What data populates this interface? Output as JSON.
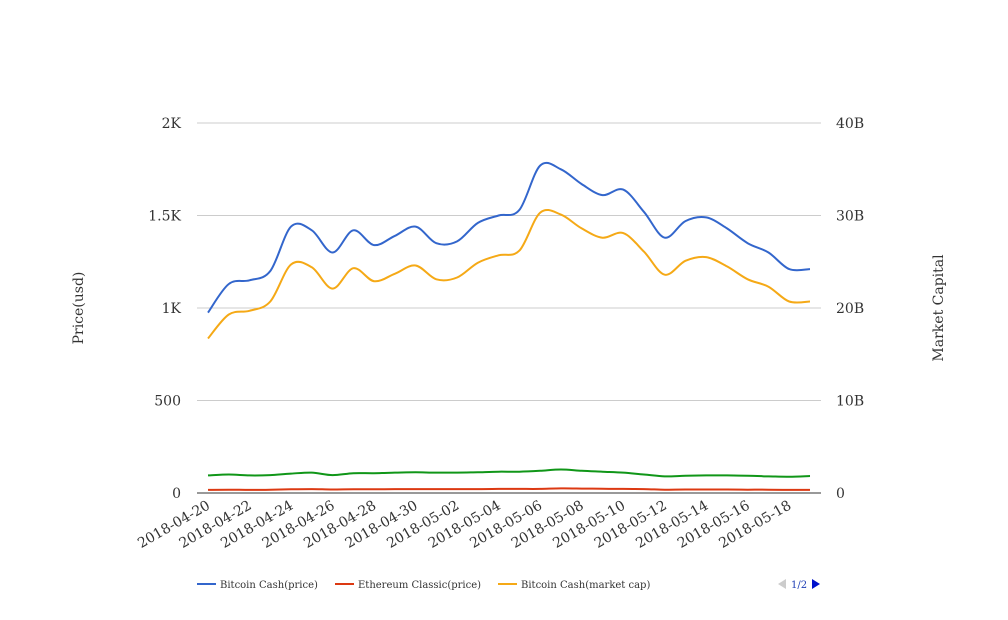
{
  "chart_data": {
    "type": "line",
    "ylabel": "Price(usd)",
    "y2label": "Market Capital",
    "ylim": [
      0,
      2000
    ],
    "y2lim": [
      0,
      40000000000
    ],
    "y_ticks": [
      "0",
      "500",
      "1K",
      "1.5K",
      "2K"
    ],
    "y2_ticks": [
      "0",
      "10B",
      "20B",
      "30B",
      "40B"
    ],
    "x_ticks": [
      "2018-04-20",
      "2018-04-22",
      "2018-04-24",
      "2018-04-26",
      "2018-04-28",
      "2018-04-30",
      "2018-05-02",
      "2018-05-04",
      "2018-05-06",
      "2018-05-08",
      "2018-05-10",
      "2018-05-12",
      "2018-05-14",
      "2018-05-16",
      "2018-05-18"
    ],
    "x": [
      "2018-04-20",
      "2018-04-21",
      "2018-04-22",
      "2018-04-23",
      "2018-04-24",
      "2018-04-25",
      "2018-04-26",
      "2018-04-27",
      "2018-04-28",
      "2018-04-29",
      "2018-04-30",
      "2018-05-01",
      "2018-05-02",
      "2018-05-03",
      "2018-05-04",
      "2018-05-05",
      "2018-05-06",
      "2018-05-07",
      "2018-05-08",
      "2018-05-09",
      "2018-05-10",
      "2018-05-11",
      "2018-05-12",
      "2018-05-13",
      "2018-05-14",
      "2018-05-15",
      "2018-05-16",
      "2018-05-17",
      "2018-05-18",
      "2018-05-19"
    ],
    "series": [
      {
        "name": "Bitcoin Cash(price)",
        "color": "#3366cc",
        "axis": "left",
        "values": [
          975,
          1130,
          1150,
          1200,
          1440,
          1420,
          1300,
          1420,
          1340,
          1390,
          1440,
          1350,
          1360,
          1460,
          1500,
          1530,
          1770,
          1750,
          1670,
          1610,
          1640,
          1520,
          1380,
          1470,
          1490,
          1430,
          1350,
          1300,
          1210,
          1210
        ]
      },
      {
        "name": "Ethereum Classic(price)",
        "color": "#dc3912",
        "axis": "left",
        "values": [
          17,
          18,
          17,
          18,
          20,
          21,
          19,
          20,
          20,
          21,
          21,
          21,
          21,
          21,
          22,
          22,
          22,
          25,
          24,
          23,
          22,
          21,
          18,
          19,
          19,
          19,
          18,
          18,
          17,
          17
        ]
      },
      {
        "name": "Bitcoin Cash(market cap)",
        "color": "#f5a916",
        "axis": "right",
        "values": [
          16700000000,
          19300000000,
          19700000000,
          20700000000,
          24700000000,
          24400000000,
          22100000000,
          24300000000,
          22900000000,
          23700000000,
          24600000000,
          23100000000,
          23300000000,
          24900000000,
          25700000000,
          26200000000,
          30300000000,
          30100000000,
          28600000000,
          27600000000,
          28100000000,
          26100000000,
          23600000000,
          25100000000,
          25500000000,
          24500000000,
          23100000000,
          22300000000,
          20700000000,
          20700000000
        ]
      },
      {
        "name": "",
        "color": "#109618",
        "axis": "left",
        "values": [
          95,
          100,
          95,
          97,
          105,
          110,
          97,
          107,
          107,
          110,
          112,
          110,
          110,
          112,
          115,
          115,
          120,
          127,
          120,
          115,
          110,
          100,
          90,
          93,
          95,
          95,
          93,
          90,
          88,
          92
        ]
      }
    ],
    "legend_position": "bottom",
    "grid": true
  },
  "legend": {
    "items": [
      "Bitcoin Cash(price)",
      "Ethereum Classic(price)",
      "Bitcoin Cash(market cap)"
    ],
    "colors": [
      "#3366cc",
      "#dc3912",
      "#f5a916"
    ],
    "page_label": "1/2"
  }
}
